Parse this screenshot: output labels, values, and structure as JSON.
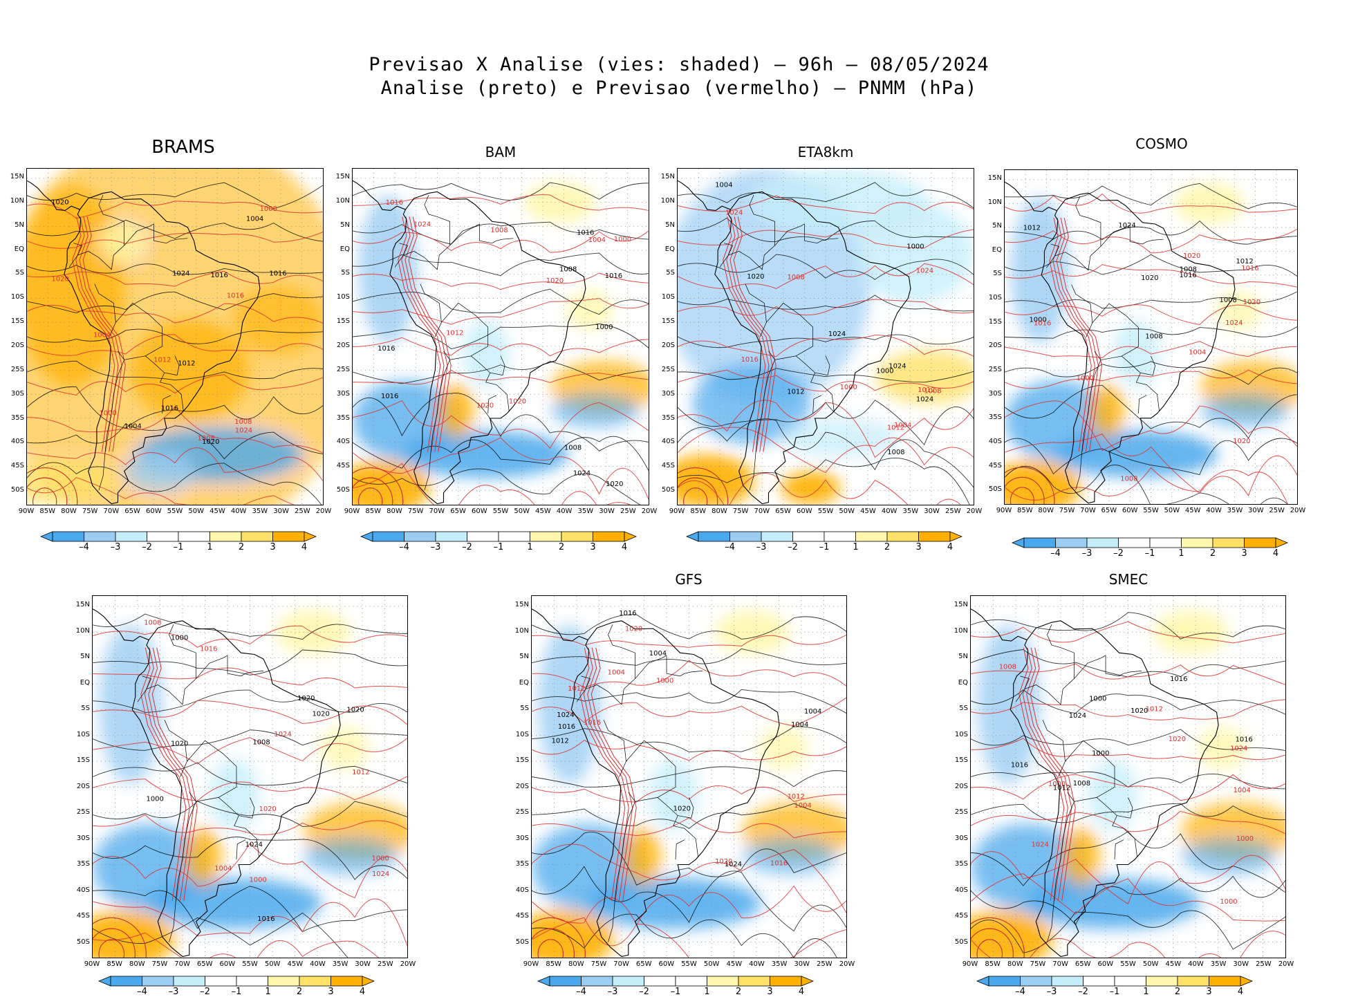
{
  "title": {
    "line1": "Previsao X Analise (vies: shaded) – 96h – 08/05/2024",
    "line2": "Analise (preto) e Previsao (vermelho) – PNMM (hPa)"
  },
  "axes": {
    "lat_labels": [
      "15N",
      "10N",
      "5N",
      "EQ",
      "5S",
      "10S",
      "15S",
      "20S",
      "25S",
      "30S",
      "35S",
      "40S",
      "45S",
      "50S"
    ],
    "lon_labels": [
      "90W",
      "85W",
      "80W",
      "75W",
      "70W",
      "65W",
      "60W",
      "55W",
      "50W",
      "45W",
      "40W",
      "35W",
      "30W",
      "25W",
      "20W"
    ]
  },
  "colorbar": {
    "labels": [
      "–4",
      "–3",
      "–2",
      "–1",
      "1",
      "2",
      "3",
      "4"
    ],
    "colors": [
      "#4aa8ec",
      "#9bcdf3",
      "#c6edfa",
      "#ffffff",
      "#fff7ad",
      "#ffe168",
      "#ffb000"
    ]
  },
  "line_colors": {
    "analysis": "#000000",
    "forecast": "#e0302f"
  },
  "isobars": [
    "1000",
    "1004",
    "1008",
    "1012",
    "1016",
    "1020",
    "1024"
  ],
  "panels": [
    {
      "title": "BRAMS",
      "bias": "warm"
    },
    {
      "title": "BAM",
      "bias": "mixed"
    },
    {
      "title": "ETA8km",
      "bias": "cool"
    },
    {
      "title": "COSMO",
      "bias": "mixed"
    },
    {
      "title": "",
      "bias": "mixed"
    },
    {
      "title": "GFS",
      "bias": "mixed"
    },
    {
      "title": "SMEC",
      "bias": "mixed"
    }
  ]
}
